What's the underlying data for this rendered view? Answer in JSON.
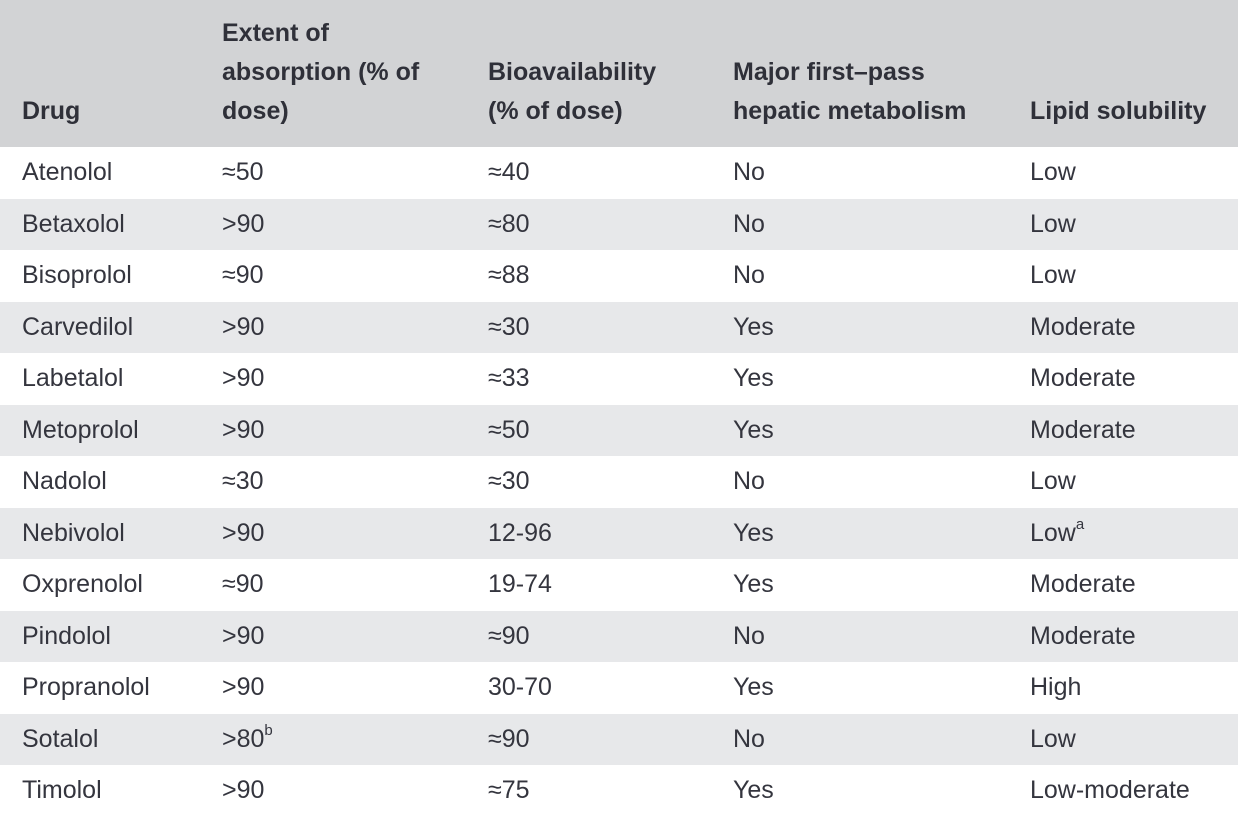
{
  "colors": {
    "header_bg": "#d2d3d5",
    "stripe_bg": "#e7e8ea",
    "row_bg": "#ffffff",
    "text": "#34353e"
  },
  "table": {
    "columns": [
      {
        "label": "Drug"
      },
      {
        "label": "Extent of absorption (% of dose)"
      },
      {
        "label": "Bioavailability (% of dose)"
      },
      {
        "label": "Major first–pass hepatic metabolism"
      },
      {
        "label": "Lipid solubility"
      }
    ],
    "rows": [
      {
        "drug": "Atenolol",
        "extent": "≈50",
        "bioavailability": "≈40",
        "metabolism": "No",
        "lipid": "Low"
      },
      {
        "drug": "Betaxolol",
        "extent": ">90",
        "bioavailability": "≈80",
        "metabolism": "No",
        "lipid": "Low"
      },
      {
        "drug": "Bisoprolol",
        "extent": "≈90",
        "bioavailability": "≈88",
        "metabolism": "No",
        "lipid": "Low"
      },
      {
        "drug": "Carvedilol",
        "extent": ">90",
        "bioavailability": "≈30",
        "metabolism": "Yes",
        "lipid": "Moderate"
      },
      {
        "drug": "Labetalol",
        "extent": ">90",
        "bioavailability": "≈33",
        "metabolism": "Yes",
        "lipid": "Moderate"
      },
      {
        "drug": "Metoprolol",
        "extent": ">90",
        "bioavailability": "≈50",
        "metabolism": "Yes",
        "lipid": "Moderate"
      },
      {
        "drug": "Nadolol",
        "extent": "≈30",
        "bioavailability": "≈30",
        "metabolism": "No",
        "lipid": "Low"
      },
      {
        "drug": "Nebivolol",
        "extent": ">90",
        "bioavailability": "12-96",
        "metabolism": "Yes",
        "lipid": "Low",
        "lipid_sup": "a"
      },
      {
        "drug": "Oxprenolol",
        "extent": "≈90",
        "bioavailability": "19-74",
        "metabolism": "Yes",
        "lipid": "Moderate"
      },
      {
        "drug": "Pindolol",
        "extent": ">90",
        "bioavailability": "≈90",
        "metabolism": "No",
        "lipid": "Moderate"
      },
      {
        "drug": "Propranolol",
        "extent": ">90",
        "bioavailability": "30-70",
        "metabolism": "Yes",
        "lipid": "High"
      },
      {
        "drug": "Sotalol",
        "extent": ">80",
        "extent_sup": "b",
        "bioavailability": "≈90",
        "metabolism": "No",
        "lipid": "Low"
      },
      {
        "drug": "Timolol",
        "extent": ">90",
        "bioavailability": "≈75",
        "metabolism": "Yes",
        "lipid": "Low-moderate"
      }
    ]
  }
}
